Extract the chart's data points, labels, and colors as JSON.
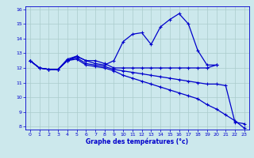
{
  "xlabel": "Graphe des températures (°c)",
  "background_color": "#cce8ec",
  "grid_color": "#aacccc",
  "line_color": "#0000cc",
  "xlim": [
    -0.5,
    23.5
  ],
  "ylim": [
    7.8,
    16.2
  ],
  "yticks": [
    8,
    9,
    10,
    11,
    12,
    13,
    14,
    15,
    16
  ],
  "xticks": [
    0,
    1,
    2,
    3,
    4,
    5,
    6,
    7,
    8,
    9,
    10,
    11,
    12,
    13,
    14,
    15,
    16,
    17,
    18,
    19,
    20,
    21,
    22,
    23
  ],
  "curve1_x": [
    0,
    1,
    2,
    3,
    4,
    5,
    6,
    7,
    8,
    9,
    10,
    11,
    12,
    13,
    14,
    15,
    16,
    17,
    18,
    19,
    20
  ],
  "curve1_y": [
    12.5,
    12.0,
    11.9,
    11.9,
    12.6,
    12.8,
    12.5,
    12.3,
    12.2,
    12.5,
    13.8,
    14.3,
    14.4,
    13.6,
    14.8,
    15.3,
    15.7,
    15.0,
    13.2,
    12.2,
    12.2
  ],
  "curve2_x": [
    0,
    1,
    2,
    3,
    4,
    5,
    6,
    7,
    8,
    9,
    10,
    11,
    12,
    13,
    14,
    15,
    16,
    17,
    18,
    19,
    20
  ],
  "curve2_y": [
    12.5,
    12.0,
    11.9,
    11.9,
    12.5,
    12.8,
    12.5,
    12.5,
    12.3,
    12.0,
    12.0,
    12.0,
    12.0,
    12.0,
    12.0,
    12.0,
    12.0,
    12.0,
    12.0,
    12.0,
    12.2
  ],
  "curve3_x": [
    0,
    1,
    2,
    3,
    4,
    5,
    6,
    7,
    8,
    9,
    10,
    11,
    12,
    13,
    14,
    15,
    16,
    17,
    18,
    19,
    20,
    21,
    22,
    23
  ],
  "curve3_y": [
    12.5,
    12.0,
    11.9,
    11.9,
    12.5,
    12.7,
    12.3,
    12.2,
    12.1,
    11.9,
    11.8,
    11.7,
    11.6,
    11.5,
    11.4,
    11.3,
    11.2,
    11.1,
    11.0,
    10.9,
    10.9,
    10.8,
    8.3,
    8.2
  ],
  "curve4_x": [
    0,
    1,
    2,
    3,
    4,
    5,
    6,
    7,
    8,
    9,
    10,
    11,
    12,
    13,
    14,
    15,
    16,
    17,
    18,
    19,
    20,
    21,
    22,
    23
  ],
  "curve4_y": [
    12.5,
    12.0,
    11.9,
    11.9,
    12.5,
    12.6,
    12.2,
    12.1,
    12.0,
    11.8,
    11.5,
    11.3,
    11.1,
    10.9,
    10.7,
    10.5,
    10.3,
    10.1,
    9.9,
    9.5,
    9.2,
    8.8,
    8.4,
    7.9
  ]
}
